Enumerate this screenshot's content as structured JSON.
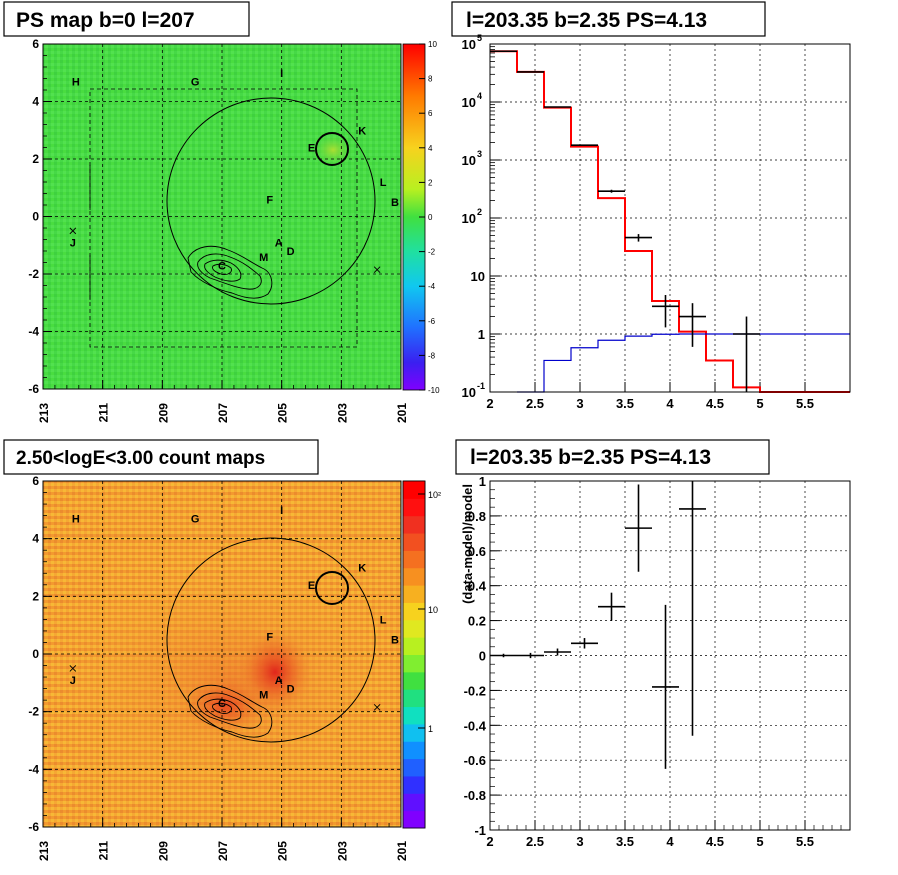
{
  "colors": {
    "psmap_bg": "#44d944",
    "count_bg": "#f2a233",
    "model_line": "#ff0000",
    "bkg_line": "#0000cc",
    "data": "#000000"
  },
  "panels": {
    "ps_map": {
      "title": "PS map b=0 l=207",
      "colorbar_ticks": [
        "10",
        "8",
        "6",
        "4",
        "2",
        "0",
        "-2",
        "-4",
        "-6",
        "-8",
        "-10"
      ]
    },
    "count_map": {
      "title": "2.50<logE<3.00 count maps",
      "colorbar_ticks": [
        "10²",
        "10",
        "1"
      ]
    },
    "spectrum": {
      "title": "l=203.35 b=2.35 PS=4.13"
    },
    "residual": {
      "title": "l=203.35 b=2.35 PS=4.13"
    }
  },
  "maps_common": {
    "x_ticks": [
      "213",
      "211",
      "209",
      "207",
      "205",
      "203",
      "201"
    ],
    "y_ticks": [
      "6",
      "4",
      "2",
      "0",
      "-2",
      "-4",
      "-6"
    ],
    "labels": [
      "H",
      "G",
      "I",
      "K",
      "E",
      "L",
      "B",
      "F",
      "J",
      "A",
      "D",
      "M",
      "C"
    ],
    "crosses": [
      "J-cross",
      "right-cross"
    ]
  },
  "chart_data": [
    {
      "type": "heatmap",
      "title": "PS map b=0 l=207",
      "xlim": [
        213,
        201
      ],
      "ylim": [
        -6,
        6
      ],
      "z_range": [
        -10,
        10
      ],
      "grid": true,
      "annotations": [
        {
          "text": "H",
          "l": 211.9,
          "b": 4.7
        },
        {
          "text": "G",
          "l": 207.9,
          "b": 4.7
        },
        {
          "text": "I",
          "l": 205.0,
          "b": 5.0
        },
        {
          "text": "K",
          "l": 202.3,
          "b": 3.0
        },
        {
          "text": "E",
          "l": 204.0,
          "b": 2.4
        },
        {
          "text": "L",
          "l": 201.6,
          "b": 1.2
        },
        {
          "text": "B",
          "l": 201.2,
          "b": 0.5
        },
        {
          "text": "F",
          "l": 205.4,
          "b": 0.6
        },
        {
          "text": "J",
          "l": 212.0,
          "b": -0.9
        },
        {
          "text": "A",
          "l": 205.1,
          "b": -0.9
        },
        {
          "text": "D",
          "l": 204.7,
          "b": -1.2
        },
        {
          "text": "M",
          "l": 205.6,
          "b": -1.4
        },
        {
          "text": "C",
          "l": 207.0,
          "b": -1.7
        }
      ]
    },
    {
      "type": "heatmap",
      "title": "2.50<logE<3.00 count maps",
      "xlim": [
        213,
        201
      ],
      "ylim": [
        -6,
        6
      ],
      "z_scale": "log",
      "grid": true
    },
    {
      "type": "line",
      "title": "l=203.35 b=2.35 PS=4.13",
      "xlim": [
        2,
        6
      ],
      "ylim": [
        0.1,
        100000
      ],
      "y_scale": "log",
      "x_ticks": [
        "2",
        "2.5",
        "3",
        "3.5",
        "4",
        "4.5",
        "5",
        "5.5"
      ],
      "y_ticks": [
        "10^5",
        "10^4",
        "10^3",
        "10^2",
        "10",
        "1",
        "10^-1"
      ],
      "grid": true,
      "series": [
        {
          "style": "step",
          "color": "#ff0000",
          "edges": [
            2.0,
            2.3,
            2.6,
            2.9,
            3.2,
            3.5,
            3.8,
            4.1,
            4.4,
            4.7,
            5.0,
            6.0
          ],
          "values": [
            75000,
            33000,
            8000,
            1700,
            220,
            27,
            3.7,
            1.1,
            0.35,
            0.12,
            0.1
          ]
        },
        {
          "style": "step",
          "color": "#0000cc",
          "edges": [
            2.3,
            2.6,
            2.9,
            3.2,
            3.5,
            3.8,
            4.1,
            6.0
          ],
          "values": [
            0.1,
            0.35,
            0.58,
            0.78,
            0.92,
            0.99,
            1.0
          ]
        },
        {
          "style": "errorbar",
          "color": "#000000",
          "x": [
            2.15,
            2.45,
            2.75,
            3.05,
            3.35,
            3.65,
            3.95,
            4.25,
            4.85
          ],
          "y": [
            75000,
            33000,
            8200,
            1800,
            290,
            46,
            3.0,
            2.0,
            1.0
          ],
          "xerr": [
            0.15,
            0.15,
            0.15,
            0.15,
            0.15,
            0.15,
            0.15,
            0.15,
            0.15
          ],
          "yerr_low": [
            300,
            180,
            90,
            40,
            17,
            6.8,
            1.7,
            1.4,
            0.99
          ],
          "yerr_high": [
            300,
            180,
            90,
            40,
            17,
            6.8,
            1.7,
            1.4,
            1.0
          ]
        }
      ]
    },
    {
      "type": "scatter",
      "title": "l=203.35 b=2.35 PS=4.13",
      "ylabel": "(data-model)/model",
      "xlim": [
        2,
        6
      ],
      "ylim": [
        -1,
        1
      ],
      "x_ticks": [
        "2",
        "2.5",
        "3",
        "3.5",
        "4",
        "4.5",
        "5",
        "5.5"
      ],
      "y_ticks": [
        "1",
        "0.8",
        "0.6",
        "0.4",
        "0.2",
        "0",
        "-0.2",
        "-0.4",
        "-0.6",
        "-0.8",
        "-1"
      ],
      "grid": true,
      "series": [
        {
          "style": "errorbar",
          "color": "#000000",
          "x": [
            2.15,
            2.45,
            2.75,
            3.05,
            3.35,
            3.65,
            3.95,
            4.25
          ],
          "y": [
            0.0,
            0.0,
            0.02,
            0.07,
            0.28,
            0.73,
            -0.18,
            0.84
          ],
          "xerr": [
            0.15,
            0.15,
            0.15,
            0.15,
            0.15,
            0.15,
            0.15,
            0.15
          ],
          "yerr": [
            0.01,
            0.015,
            0.02,
            0.03,
            0.08,
            0.25,
            0.47,
            1.3
          ]
        }
      ]
    }
  ]
}
